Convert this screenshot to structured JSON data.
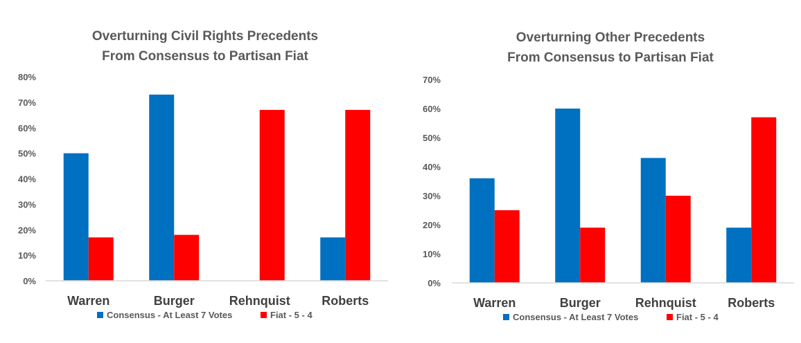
{
  "chart_data": [
    {
      "type": "bar",
      "title": [
        "Overturning Civil Rights Precedents",
        "From Consensus to Partisan Fiat"
      ],
      "categories": [
        "Warren",
        "Burger",
        "Rehnquist",
        "Roberts"
      ],
      "series": [
        {
          "name": "Consensus - At Least 7 Votes",
          "color": "#0070C0",
          "values": [
            50,
            73,
            0,
            17
          ]
        },
        {
          "name": "Fiat - 5 - 4",
          "color": "#FF0000",
          "values": [
            17,
            18,
            67,
            67
          ]
        }
      ],
      "ylim": [
        0,
        80
      ],
      "yticks": [
        "0%",
        "10%",
        "20%",
        "30%",
        "40%",
        "50%",
        "60%",
        "70%",
        "80%"
      ],
      "grid": false,
      "legend_position": "bottom"
    },
    {
      "type": "bar",
      "title": [
        "Overturning Other Precedents",
        "From Consensus to Partisan Fiat"
      ],
      "categories": [
        "Warren",
        "Burger",
        "Rehnquist",
        "Roberts"
      ],
      "series": [
        {
          "name": "Consensus - At Least 7 Votes",
          "color": "#0070C0",
          "values": [
            36,
            60,
            43,
            19
          ]
        },
        {
          "name": "Fiat - 5 - 4",
          "color": "#FF0000",
          "values": [
            25,
            19,
            30,
            57
          ]
        }
      ],
      "ylim": [
        0,
        70
      ],
      "yticks": [
        "0%",
        "10%",
        "20%",
        "30%",
        "40%",
        "50%",
        "60%",
        "70%"
      ],
      "grid": false,
      "legend_position": "bottom"
    }
  ]
}
